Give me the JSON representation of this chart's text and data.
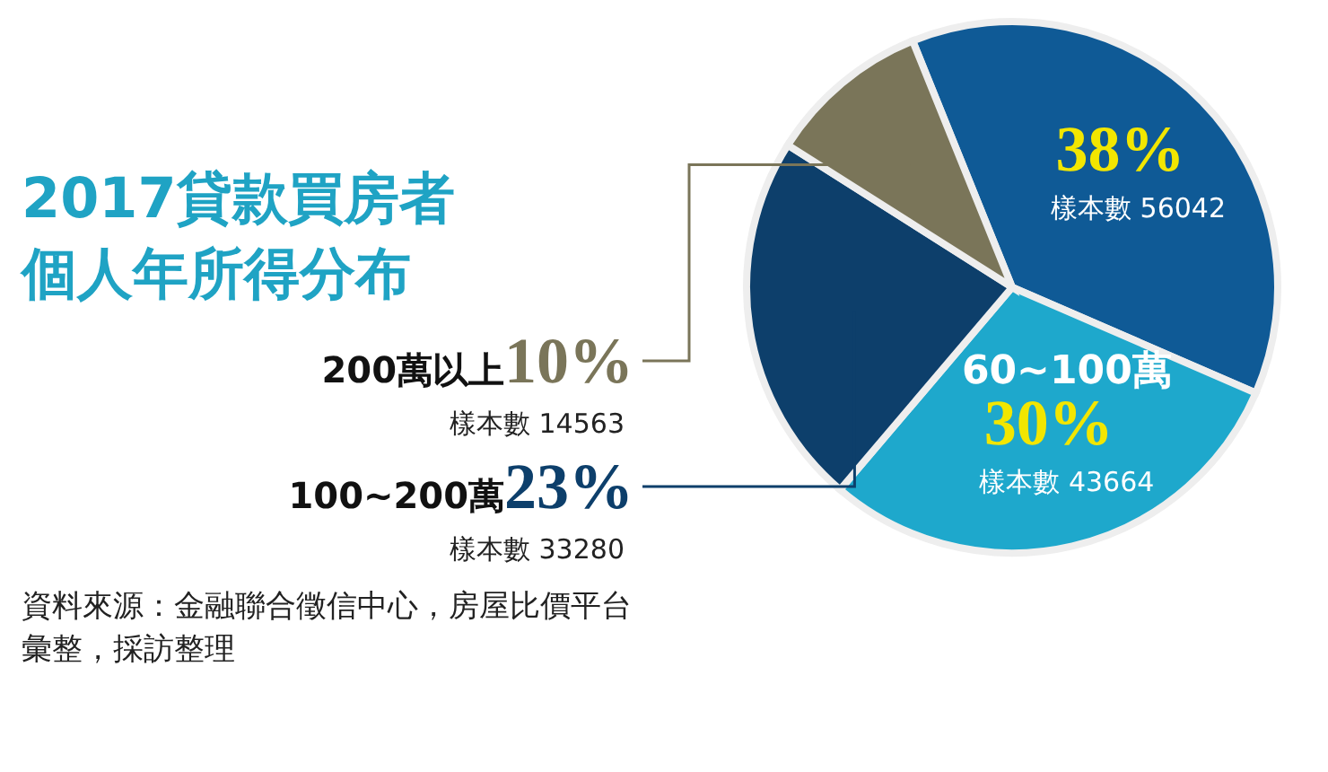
{
  "chart_data": {
    "type": "pie",
    "title": "2017貸款買房者個人年所得分布",
    "categories": [
      null,
      "60~100萬",
      "100~200萬",
      "200萬以上"
    ],
    "values": [
      38,
      30,
      23,
      10
    ],
    "colors": [
      "#0f5a96",
      "#1ea8cc",
      "#0d3f6b",
      "#7a7559"
    ],
    "value_labels": [
      "38%",
      "30%",
      "23%",
      "10%"
    ],
    "annotations": [
      "樣本數 56042",
      "樣本數 43664",
      "樣本數 33280",
      "樣本數 14563",
      "資料來源：金融聯合徵信中心，房屋比價平台彙整，採訪整理"
    ],
    "legend": false
  }
}
